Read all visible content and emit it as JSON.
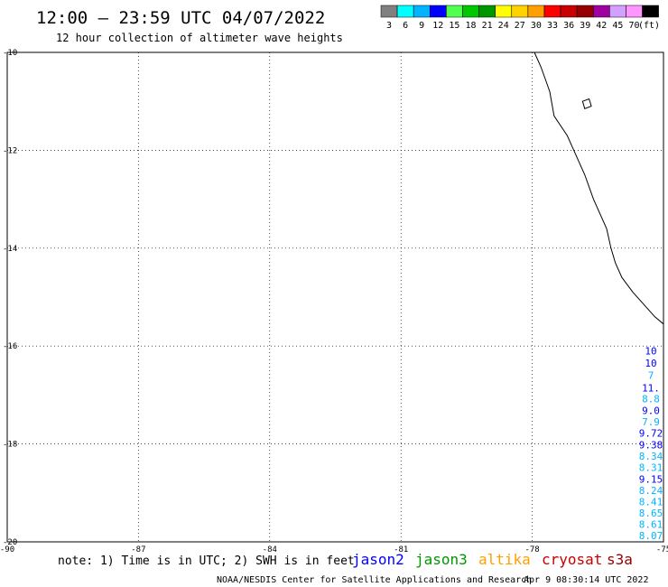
{
  "header": {
    "title": "12:00 – 23:59 UTC 04/07/2022",
    "subtitle": "12 hour collection of altimeter wave heights"
  },
  "legend": {
    "unit": "(ft)",
    "swatches": [
      {
        "color": "#808080",
        "label": "3"
      },
      {
        "color": "#00ffff",
        "label": "6"
      },
      {
        "color": "#00b4ff",
        "label": "9"
      },
      {
        "color": "#0000ff",
        "label": "12"
      },
      {
        "color": "#50ff50",
        "label": "15"
      },
      {
        "color": "#00c800",
        "label": "18"
      },
      {
        "color": "#009600",
        "label": "21"
      },
      {
        "color": "#ffff00",
        "label": "24"
      },
      {
        "color": "#ffd200",
        "label": "27"
      },
      {
        "color": "#ffa000",
        "label": "30"
      },
      {
        "color": "#ff0000",
        "label": "33"
      },
      {
        "color": "#c80000",
        "label": "36"
      },
      {
        "color": "#960000",
        "label": "39"
      },
      {
        "color": "#a000a0",
        "label": "42"
      },
      {
        "color": "#d2a0ff",
        "label": "45"
      },
      {
        "color": "#ff96ff",
        "label": "70"
      },
      {
        "color": "#000000",
        "label": ""
      }
    ]
  },
  "map": {
    "lon_range": [
      -90,
      -75
    ],
    "lat_range": [
      -20,
      -10
    ],
    "lon_ticks": [
      "-90",
      "-87",
      "-84",
      "-81",
      "-78",
      "-75"
    ],
    "lat_ticks": [
      "-10",
      "-12",
      "-14",
      "-16",
      "-18",
      "-20"
    ],
    "grid": "dotted",
    "coastline": [
      [
        -77.95,
        -10.0
      ],
      [
        -77.8,
        -10.3
      ],
      [
        -77.6,
        -10.8
      ],
      [
        -77.5,
        -11.3
      ],
      [
        -77.2,
        -11.7
      ],
      [
        -77.0,
        -12.1
      ],
      [
        -76.8,
        -12.5
      ],
      [
        -76.6,
        -13.0
      ],
      [
        -76.3,
        -13.6
      ],
      [
        -76.2,
        -14.0
      ],
      [
        -76.1,
        -14.3
      ],
      [
        -75.95,
        -14.6
      ],
      [
        -75.7,
        -14.9
      ],
      [
        -75.4,
        -15.2
      ],
      [
        -75.2,
        -15.4
      ],
      [
        -75.0,
        -15.55
      ]
    ],
    "island": [
      [
        -76.85,
        -11.0
      ],
      [
        -76.7,
        -10.95
      ],
      [
        -76.65,
        -11.1
      ],
      [
        -76.8,
        -11.15
      ]
    ],
    "swh_readings": [
      {
        "value": "10",
        "color": "#0000ff",
        "lat": -16.1
      },
      {
        "value": "10",
        "color": "#0000ff",
        "lat": -16.35
      },
      {
        "value": "7",
        "color": "#00b4ff",
        "lat": -16.6
      },
      {
        "value": "11.",
        "color": "#0000ff",
        "lat": -16.85
      },
      {
        "value": "8.8",
        "color": "#00b4ff",
        "lat": -17.08
      },
      {
        "value": "9.0",
        "color": "#0000ff",
        "lat": -17.32
      },
      {
        "value": "7.9",
        "color": "#00b4ff",
        "lat": -17.55
      },
      {
        "value": "9.72",
        "color": "#0000ff",
        "lat": -17.78
      },
      {
        "value": "9.38",
        "color": "#0000ff",
        "lat": -18.02
      },
      {
        "value": "8.34",
        "color": "#00b4ff",
        "lat": -18.25
      },
      {
        "value": "8.31",
        "color": "#00b4ff",
        "lat": -18.48
      },
      {
        "value": "9.15",
        "color": "#0000ff",
        "lat": -18.72
      },
      {
        "value": "8.24",
        "color": "#00b4ff",
        "lat": -18.95
      },
      {
        "value": "8.41",
        "color": "#00b4ff",
        "lat": -19.18
      },
      {
        "value": "8.65",
        "color": "#00b4ff",
        "lat": -19.41
      },
      {
        "value": "8.61",
        "color": "#00b4ff",
        "lat": -19.64
      },
      {
        "value": "8.07",
        "color": "#00b4ff",
        "lat": -19.87
      }
    ]
  },
  "footer": {
    "note": "note: 1) Time is in UTC; 2) SWH is in feet",
    "satellites": [
      {
        "name": "jason2",
        "color": "#0000ff"
      },
      {
        "name": "jason3",
        "color": "#009600"
      },
      {
        "name": "altika",
        "color": "#ffa000"
      },
      {
        "name": "cryosat",
        "color": "#c80000"
      },
      {
        "name": "s3a",
        "color": "#960000"
      }
    ],
    "credit": "NOAA/NESDIS Center for Satellite Applications and Research",
    "timestamp": "Apr  9 08:30:14 UTC 2022"
  }
}
